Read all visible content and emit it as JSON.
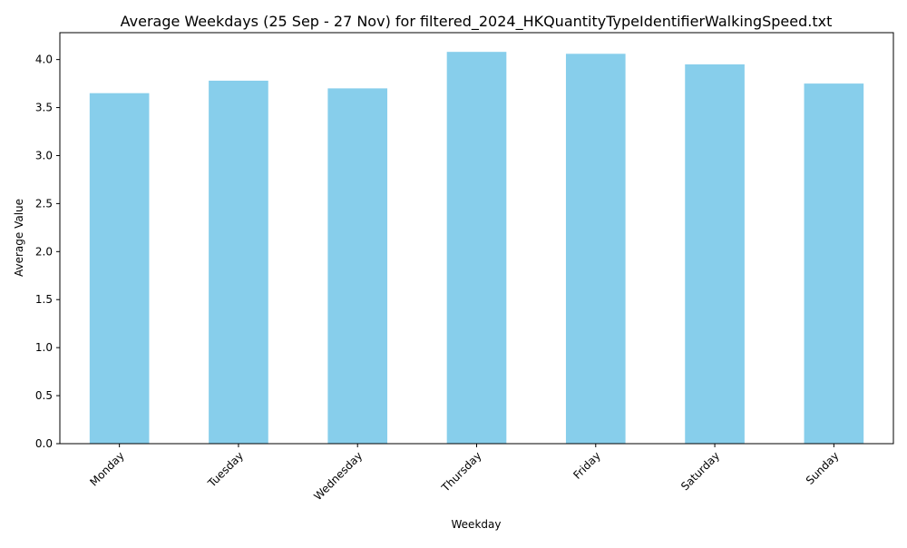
{
  "chart_data": {
    "type": "bar",
    "title": "Average Weekdays (25 Sep - 27 Nov) for filtered_2024_HKQuantityTypeIdentifierWalkingSpeed.txt",
    "xlabel": "Weekday",
    "ylabel": "Average Value",
    "categories": [
      "Monday",
      "Tuesday",
      "Wednesday",
      "Thursday",
      "Friday",
      "Saturday",
      "Sunday"
    ],
    "values": [
      3.65,
      3.78,
      3.7,
      4.08,
      4.06,
      3.95,
      3.75
    ],
    "ylim": [
      0,
      4.28
    ],
    "yticks": [
      "0.0",
      "0.5",
      "1.0",
      "1.5",
      "2.0",
      "2.5",
      "3.0",
      "3.5",
      "4.0"
    ],
    "bar_color": "#87ceeb",
    "grid": false,
    "legend": "none"
  }
}
